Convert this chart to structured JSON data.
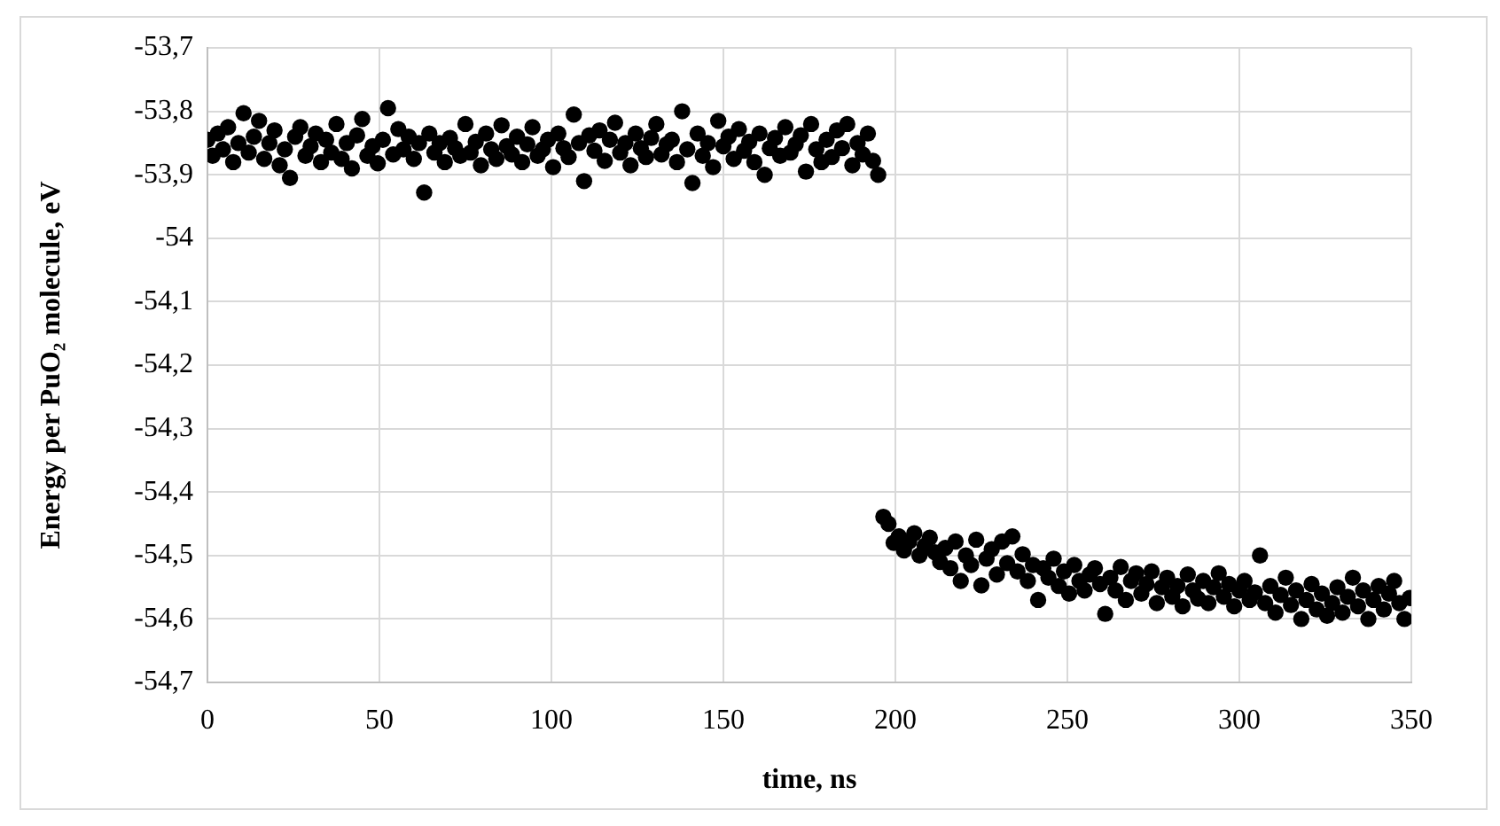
{
  "chart_data": {
    "type": "scatter",
    "xlabel": "time, ns",
    "ylabel": "Energy per PuO₂ molecule, eV",
    "xlim": [
      0,
      350
    ],
    "xticks": [
      0,
      50,
      100,
      150,
      200,
      250,
      300,
      350
    ],
    "ylim": [
      -54.7,
      -53.7
    ],
    "yticks": [
      {
        "value": -54.7,
        "label": "-54,7"
      },
      {
        "value": -54.6,
        "label": "-54,6"
      },
      {
        "value": -54.5,
        "label": "-54,5"
      },
      {
        "value": -54.4,
        "label": "-54,4"
      },
      {
        "value": -54.3,
        "label": "-54,3"
      },
      {
        "value": -54.2,
        "label": "-54,2"
      },
      {
        "value": -54.1,
        "label": "-54,1"
      },
      -54,
      {
        "value": -53.9,
        "label": "-53,9"
      },
      {
        "value": -53.8,
        "label": "-53,8"
      },
      {
        "value": -53.7,
        "label": "-53,7"
      }
    ],
    "grid": true,
    "marker": "circle",
    "series": [
      {
        "color": "#000000",
        "x": [
          0,
          1.5,
          3,
          4.5,
          6,
          7.5,
          9,
          10.5,
          12,
          13.5,
          15,
          16.5,
          18,
          19.5,
          21,
          22.5,
          24,
          25.5,
          27,
          28.5,
          30,
          31.5,
          33,
          34.5,
          36,
          37.5,
          39,
          40.5,
          42,
          43.5,
          45,
          46.5,
          48,
          49.5,
          51,
          52.5,
          54,
          55.5,
          57,
          58.5,
          60,
          61.5,
          63,
          64.5,
          66,
          67.5,
          69,
          70.5,
          72,
          73.5,
          75,
          76.5,
          78,
          79.5,
          81,
          82.5,
          84,
          85.5,
          87,
          88.5,
          90,
          91.5,
          93,
          94.5,
          96,
          97.5,
          99,
          100.5,
          102,
          103.5,
          105,
          106.5,
          108,
          109.5,
          111,
          112.5,
          114,
          115.5,
          117,
          118.5,
          120,
          121.5,
          123,
          124.5,
          126,
          127.5,
          129,
          130.5,
          132,
          133.5,
          135,
          136.5,
          138,
          139.5,
          141,
          142.5,
          144,
          145.5,
          147,
          148.5,
          150,
          151.5,
          153,
          154.5,
          156,
          157.5,
          159,
          160.5,
          162,
          163.5,
          165,
          166.5,
          168,
          169.5,
          171,
          172.5,
          174,
          175.5,
          177,
          178.5,
          180,
          181.5,
          183,
          184.5,
          186,
          187.5,
          189,
          190.5,
          192,
          193.5,
          195
        ],
        "values": [
          -53.845,
          -53.87,
          -53.835,
          -53.86,
          -53.825,
          -53.88,
          -53.85,
          -53.803,
          -53.865,
          -53.84,
          -53.815,
          -53.875,
          -53.85,
          -53.83,
          -53.885,
          -53.86,
          -53.905,
          -53.84,
          -53.825,
          -53.87,
          -53.855,
          -53.835,
          -53.88,
          -53.845,
          -53.865,
          -53.82,
          -53.875,
          -53.85,
          -53.89,
          -53.838,
          -53.812,
          -53.87,
          -53.855,
          -53.882,
          -53.845,
          -53.795,
          -53.868,
          -53.828,
          -53.86,
          -53.84,
          -53.875,
          -53.85,
          -53.928,
          -53.835,
          -53.865,
          -53.85,
          -53.88,
          -53.842,
          -53.858,
          -53.87,
          -53.82,
          -53.865,
          -53.848,
          -53.885,
          -53.835,
          -53.86,
          -53.875,
          -53.822,
          -53.855,
          -53.868,
          -53.84,
          -53.88,
          -53.852,
          -53.825,
          -53.87,
          -53.86,
          -53.845,
          -53.888,
          -53.835,
          -53.858,
          -53.872,
          -53.805,
          -53.85,
          -53.91,
          -53.838,
          -53.862,
          -53.83,
          -53.878,
          -53.845,
          -53.818,
          -53.865,
          -53.85,
          -53.885,
          -53.835,
          -53.858,
          -53.872,
          -53.842,
          -53.82,
          -53.868,
          -53.852,
          -53.845,
          -53.88,
          -53.8,
          -53.86,
          -53.913,
          -53.835,
          -53.87,
          -53.85,
          -53.888,
          -53.815,
          -53.855,
          -53.84,
          -53.875,
          -53.828,
          -53.862,
          -53.848,
          -53.88,
          -53.835,
          -53.9,
          -53.858,
          -53.842,
          -53.87,
          -53.825,
          -53.865,
          -53.852,
          -53.838,
          -53.895,
          -53.82,
          -53.86,
          -53.88,
          -53.845,
          -53.872,
          -53.83,
          -53.858,
          -53.82,
          -53.885,
          -53.85,
          -53.868,
          -53.835,
          -53.878,
          -53.9
        ]
      },
      {
        "color": "#000000",
        "x": [
          196.5,
          198,
          199.5,
          201,
          202.5,
          204,
          205.5,
          207,
          208.5,
          210,
          211.5,
          213,
          214.5,
          216,
          217.5,
          219,
          220.5,
          222,
          223.5,
          225,
          226.5,
          228,
          229.5,
          231,
          232.5,
          234,
          235.5,
          237,
          238.5,
          240,
          241.5,
          243,
          244.5,
          246,
          247.5,
          249,
          250.5,
          252,
          253.5,
          255,
          256.5,
          258,
          259.5,
          261,
          262.5,
          264,
          265.5,
          267,
          268.5,
          270,
          271.5,
          273,
          274.5,
          276,
          277.5,
          279,
          280.5,
          282,
          283.5,
          285,
          286.5,
          288,
          289.5,
          291,
          292.5,
          294,
          295.5,
          297,
          298.5,
          300,
          301.5,
          303,
          304.5,
          306,
          307.5,
          309,
          310.5,
          312,
          313.5,
          315,
          316.5,
          318,
          319.5,
          321,
          322.5,
          324,
          325.5,
          327,
          328.5,
          330,
          331.5,
          333,
          334.5,
          336,
          337.5,
          339,
          340.5,
          342,
          343.5,
          345,
          346.5,
          348,
          349.5
        ],
        "values": [
          -54.439,
          -54.45,
          -54.48,
          -54.47,
          -54.492,
          -54.478,
          -54.465,
          -54.5,
          -54.485,
          -54.472,
          -54.495,
          -54.51,
          -54.488,
          -54.52,
          -54.478,
          -54.54,
          -54.5,
          -54.515,
          -54.475,
          -54.547,
          -54.505,
          -54.49,
          -54.53,
          -54.478,
          -54.512,
          -54.47,
          -54.525,
          -54.498,
          -54.54,
          -54.515,
          -54.57,
          -54.52,
          -54.535,
          -54.505,
          -54.548,
          -54.525,
          -54.56,
          -54.515,
          -54.54,
          -54.555,
          -54.53,
          -54.52,
          -54.545,
          -54.592,
          -54.535,
          -54.555,
          -54.518,
          -54.57,
          -54.54,
          -54.528,
          -54.56,
          -54.545,
          -54.525,
          -54.575,
          -54.55,
          -54.535,
          -54.565,
          -54.548,
          -54.58,
          -54.53,
          -54.555,
          -54.568,
          -54.54,
          -54.575,
          -54.55,
          -54.528,
          -54.565,
          -54.545,
          -54.58,
          -54.555,
          -54.54,
          -54.57,
          -54.558,
          -54.5,
          -54.575,
          -54.548,
          -54.59,
          -54.562,
          -54.535,
          -54.578,
          -54.555,
          -54.6,
          -54.57,
          -54.545,
          -54.585,
          -54.56,
          -54.595,
          -54.575,
          -54.55,
          -54.59,
          -54.565,
          -54.535,
          -54.58,
          -54.555,
          -54.6,
          -54.57,
          -54.548,
          -54.585,
          -54.56,
          -54.54,
          -54.575,
          -54.6,
          -54.567
        ]
      }
    ]
  }
}
